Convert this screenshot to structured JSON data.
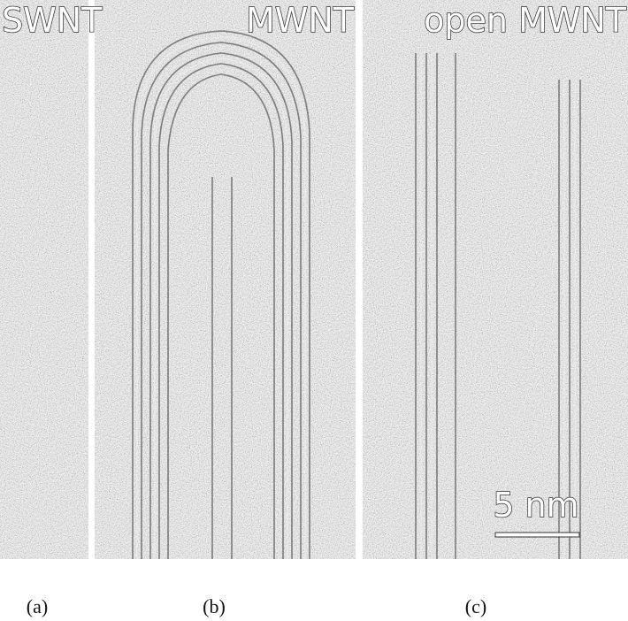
{
  "panels": [
    {
      "label": "SWNT",
      "caption": "(a)"
    },
    {
      "label": "MWNT",
      "caption": "(b)"
    },
    {
      "label": "open MWNT",
      "caption": "(c)"
    }
  ],
  "scale_bar": "5 nm"
}
